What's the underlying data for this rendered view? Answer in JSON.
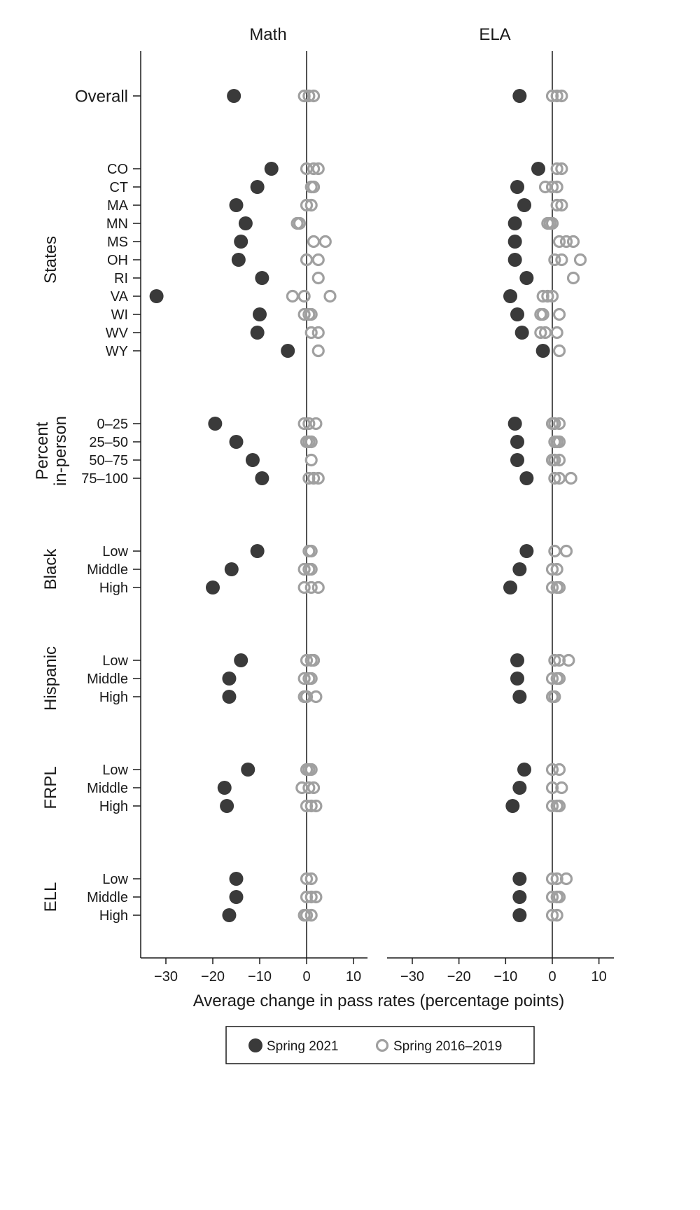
{
  "chart_data": {
    "type": "scatter",
    "xlabel": "Average change in pass rates (percentage points)",
    "xlim": [
      -35,
      13
    ],
    "xticks": [
      -30,
      -20,
      -10,
      0,
      10
    ],
    "xtick_labels": [
      "−30",
      "−20",
      "−10",
      "0",
      "10"
    ],
    "grid": false,
    "legend_position": "bottom",
    "panels": [
      {
        "title": "Math",
        "key": "math"
      },
      {
        "title": "ELA",
        "key": "ela"
      }
    ],
    "series": [
      {
        "name": "Spring 2021",
        "marker": "filled-circle",
        "color": "#3a3a3a"
      },
      {
        "name": "Spring 2016–2019",
        "marker": "hollow-circle",
        "color": "#a0a0a0"
      }
    ],
    "groups": [
      {
        "label": "",
        "rows": [
          {
            "label": "Overall",
            "math": {
              "s2021": -15.5,
              "prior": [
                -0.5,
                0.5,
                1.5
              ]
            },
            "ela": {
              "s2021": -7,
              "prior": [
                0,
                1,
                2
              ]
            }
          }
        ]
      },
      {
        "label": "States",
        "rows": [
          {
            "label": "CO",
            "math": {
              "s2021": -7.5,
              "prior": [
                0,
                1.5,
                2.5
              ]
            },
            "ela": {
              "s2021": -3,
              "prior": [
                1,
                2
              ]
            }
          },
          {
            "label": "CT",
            "math": {
              "s2021": -10.5,
              "prior": [
                1,
                1.5
              ]
            },
            "ela": {
              "s2021": -7.5,
              "prior": [
                -1.5,
                0,
                1
              ]
            }
          },
          {
            "label": "MA",
            "math": {
              "s2021": -15,
              "prior": [
                0,
                1
              ]
            },
            "ela": {
              "s2021": -6,
              "prior": [
                1,
                2
              ]
            }
          },
          {
            "label": "MN",
            "math": {
              "s2021": -13,
              "prior": [
                -2,
                -1.5
              ]
            },
            "ela": {
              "s2021": -8,
              "prior": [
                -1,
                -0.5,
                0
              ]
            }
          },
          {
            "label": "MS",
            "math": {
              "s2021": -14,
              "prior": [
                1.5,
                4
              ]
            },
            "ela": {
              "s2021": -8,
              "prior": [
                1.5,
                3,
                4.5
              ]
            }
          },
          {
            "label": "OH",
            "math": {
              "s2021": -14.5,
              "prior": [
                0,
                2.5
              ]
            },
            "ela": {
              "s2021": -8,
              "prior": [
                0.5,
                2,
                6
              ]
            }
          },
          {
            "label": "RI",
            "math": {
              "s2021": -9.5,
              "prior": [
                2.5
              ]
            },
            "ela": {
              "s2021": -5.5,
              "prior": [
                4.5
              ]
            }
          },
          {
            "label": "VA",
            "math": {
              "s2021": -32,
              "prior": [
                -3,
                -0.5,
                5
              ]
            },
            "ela": {
              "s2021": -9,
              "prior": [
                -2,
                -1,
                0
              ]
            }
          },
          {
            "label": "WI",
            "math": {
              "s2021": -10,
              "prior": [
                -0.5,
                0.5,
                1
              ]
            },
            "ela": {
              "s2021": -7.5,
              "prior": [
                -2.5,
                -2,
                1.5
              ]
            }
          },
          {
            "label": "WV",
            "math": {
              "s2021": -10.5,
              "prior": [
                1,
                2.5
              ]
            },
            "ela": {
              "s2021": -6.5,
              "prior": [
                -2.5,
                -1.5,
                1
              ]
            }
          },
          {
            "label": "WY",
            "math": {
              "s2021": -4,
              "prior": [
                2.5
              ]
            },
            "ela": {
              "s2021": -2,
              "prior": [
                1.5
              ]
            }
          }
        ]
      },
      {
        "label": "Percent in-person",
        "rows": [
          {
            "label": "0–25",
            "math": {
              "s2021": -19.5,
              "prior": [
                -0.5,
                0.5,
                2
              ]
            },
            "ela": {
              "s2021": -8,
              "prior": [
                0,
                0.5,
                1.5
              ]
            }
          },
          {
            "label": "25–50",
            "math": {
              "s2021": -15,
              "prior": [
                0,
                0.5,
                1
              ]
            },
            "ela": {
              "s2021": -7.5,
              "prior": [
                0.5,
                1,
                1.5
              ]
            }
          },
          {
            "label": "50–75",
            "math": {
              "s2021": -11.5,
              "prior": [
                1
              ]
            },
            "ela": {
              "s2021": -7.5,
              "prior": [
                0,
                0.5,
                1.5
              ]
            }
          },
          {
            "label": "75–100",
            "math": {
              "s2021": -9.5,
              "prior": [
                0.5,
                1.5,
                2.5
              ]
            },
            "ela": {
              "s2021": -5.5,
              "prior": [
                0.5,
                1.5,
                4
              ]
            }
          }
        ]
      },
      {
        "label": "Black",
        "rows": [
          {
            "label": "Low",
            "math": {
              "s2021": -10.5,
              "prior": [
                0.5,
                1
              ]
            },
            "ela": {
              "s2021": -5.5,
              "prior": [
                0.5,
                3
              ]
            }
          },
          {
            "label": "Middle",
            "math": {
              "s2021": -16,
              "prior": [
                -0.5,
                0.5,
                1
              ]
            },
            "ela": {
              "s2021": -7,
              "prior": [
                0,
                1
              ]
            }
          },
          {
            "label": "High",
            "math": {
              "s2021": -20,
              "prior": [
                -0.5,
                1,
                2.5
              ]
            },
            "ela": {
              "s2021": -9,
              "prior": [
                0,
                1,
                1.5
              ]
            }
          }
        ]
      },
      {
        "label": "Hispanic",
        "rows": [
          {
            "label": "Low",
            "math": {
              "s2021": -14,
              "prior": [
                0,
                1,
                1.5
              ]
            },
            "ela": {
              "s2021": -7.5,
              "prior": [
                0.5,
                1.5,
                3.5
              ]
            }
          },
          {
            "label": "Middle",
            "math": {
              "s2021": -16.5,
              "prior": [
                -0.5,
                0.5,
                1
              ]
            },
            "ela": {
              "s2021": -7.5,
              "prior": [
                0,
                1,
                1.5
              ]
            }
          },
          {
            "label": "High",
            "math": {
              "s2021": -16.5,
              "prior": [
                -0.5,
                0,
                2
              ]
            },
            "ela": {
              "s2021": -7,
              "prior": [
                0,
                0.5
              ]
            }
          }
        ]
      },
      {
        "label": "FRPL",
        "rows": [
          {
            "label": "Low",
            "math": {
              "s2021": -12.5,
              "prior": [
                0,
                0.5,
                1
              ]
            },
            "ela": {
              "s2021": -6,
              "prior": [
                0,
                1.5
              ]
            }
          },
          {
            "label": "Middle",
            "math": {
              "s2021": -17.5,
              "prior": [
                -1,
                0.5,
                1.5
              ]
            },
            "ela": {
              "s2021": -7,
              "prior": [
                0,
                2
              ]
            }
          },
          {
            "label": "High",
            "math": {
              "s2021": -17,
              "prior": [
                0,
                1,
                2
              ]
            },
            "ela": {
              "s2021": -8.5,
              "prior": [
                0,
                1,
                1.5
              ]
            }
          }
        ]
      },
      {
        "label": "ELL",
        "rows": [
          {
            "label": "Low",
            "math": {
              "s2021": -15,
              "prior": [
                0,
                1
              ]
            },
            "ela": {
              "s2021": -7,
              "prior": [
                0,
                1,
                3
              ]
            }
          },
          {
            "label": "Middle",
            "math": {
              "s2021": -15,
              "prior": [
                0,
                1,
                2
              ]
            },
            "ela": {
              "s2021": -7,
              "prior": [
                0,
                1,
                1.5
              ]
            }
          },
          {
            "label": "High",
            "math": {
              "s2021": -16.5,
              "prior": [
                -0.5,
                0,
                1
              ]
            },
            "ela": {
              "s2021": -7,
              "prior": [
                0,
                1
              ]
            }
          }
        ]
      }
    ]
  }
}
